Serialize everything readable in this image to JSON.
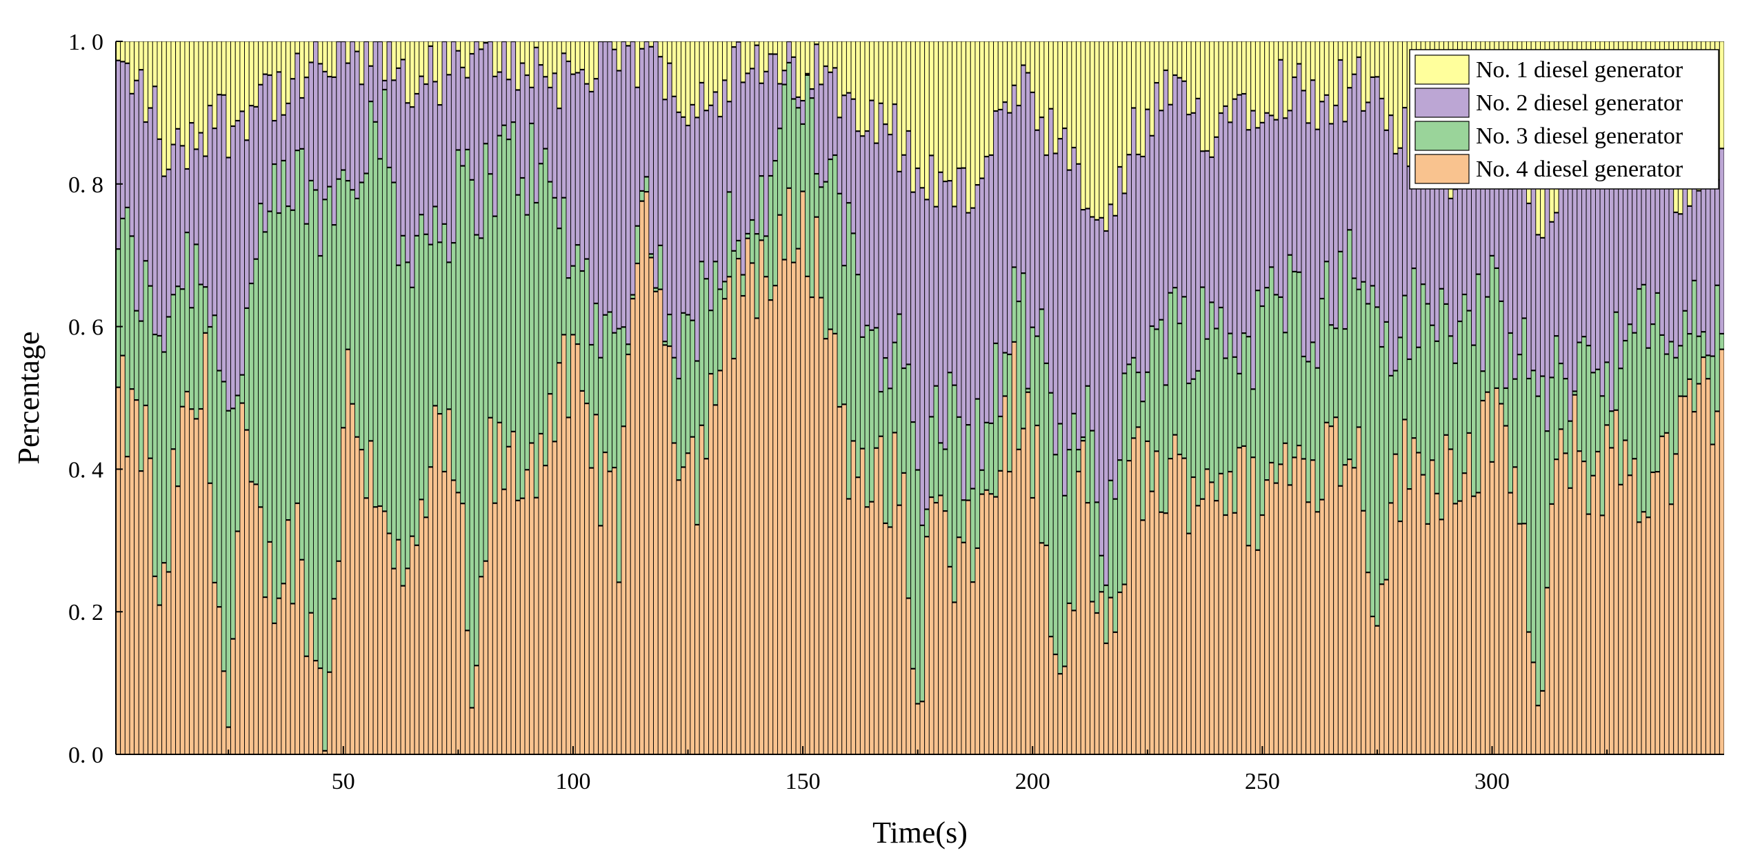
{
  "chart_data": {
    "type": "bar",
    "stacked": true,
    "normalized": true,
    "xlabel": "Time(s)",
    "ylabel": "Percentage",
    "xlim": [
      0.5,
      350.5
    ],
    "ylim": [
      0,
      1.0
    ],
    "x_ticks": [
      50,
      100,
      150,
      200,
      250,
      300
    ],
    "y_ticks": [
      "0.0",
      "0.2",
      "0.4",
      "0.6",
      "0.8",
      "1.0"
    ],
    "grid": false,
    "legend_position": "top-right",
    "n_bars": 350,
    "series": [
      {
        "name": "No. 4 diesel generator",
        "color": "#F9C38F"
      },
      {
        "name": "No. 3 diesel generator",
        "color": "#9AD49A"
      },
      {
        "name": "No. 2 diesel generator",
        "color": "#BCA6D4"
      },
      {
        "name": "No. 1 diesel generator",
        "color": "#FFFF9C"
      }
    ],
    "cumulative_profile": {
      "no4_top": [
        [
          1,
          0.49
        ],
        [
          8,
          0.42
        ],
        [
          10,
          0.15
        ],
        [
          14,
          0.42
        ],
        [
          20,
          0.52
        ],
        [
          25,
          0.02
        ],
        [
          28,
          0.42
        ],
        [
          34,
          0.24
        ],
        [
          40,
          0.3
        ],
        [
          46,
          0.05
        ],
        [
          51,
          0.52
        ],
        [
          55,
          0.42
        ],
        [
          60,
          0.35
        ],
        [
          63,
          0.2
        ],
        [
          70,
          0.42
        ],
        [
          75,
          0.4
        ],
        [
          78,
          0.02
        ],
        [
          82,
          0.4
        ],
        [
          90,
          0.4
        ],
        [
          96,
          0.5
        ],
        [
          100,
          0.52
        ],
        [
          106,
          0.4
        ],
        [
          110,
          0.3
        ],
        [
          113,
          0.7
        ],
        [
          118,
          0.72
        ],
        [
          123,
          0.45
        ],
        [
          127,
          0.4
        ],
        [
          132,
          0.55
        ],
        [
          138,
          0.7
        ],
        [
          144,
          0.66
        ],
        [
          148,
          0.75
        ],
        [
          152,
          0.72
        ],
        [
          156,
          0.6
        ],
        [
          162,
          0.35
        ],
        [
          168,
          0.4
        ],
        [
          172,
          0.35
        ],
        [
          175,
          0.05
        ],
        [
          178,
          0.35
        ],
        [
          184,
          0.24
        ],
        [
          190,
          0.35
        ],
        [
          196,
          0.5
        ],
        [
          201,
          0.4
        ],
        [
          206,
          0.05
        ],
        [
          211,
          0.4
        ],
        [
          216,
          0.1
        ],
        [
          222,
          0.4
        ],
        [
          230,
          0.38
        ],
        [
          240,
          0.4
        ],
        [
          248,
          0.35
        ],
        [
          255,
          0.4
        ],
        [
          262,
          0.42
        ],
        [
          270,
          0.45
        ],
        [
          275,
          0.22
        ],
        [
          280,
          0.4
        ],
        [
          288,
          0.4
        ],
        [
          294,
          0.42
        ],
        [
          300,
          0.45
        ],
        [
          306,
          0.38
        ],
        [
          310,
          0.02
        ],
        [
          315,
          0.45
        ],
        [
          322,
          0.4
        ],
        [
          328,
          0.42
        ],
        [
          334,
          0.38
        ],
        [
          340,
          0.42
        ],
        [
          346,
          0.5
        ],
        [
          350,
          0.5
        ]
      ],
      "no3_top": [
        [
          1,
          0.74
        ],
        [
          8,
          0.62
        ],
        [
          10,
          0.6
        ],
        [
          16,
          0.7
        ],
        [
          22,
          0.65
        ],
        [
          25,
          0.45
        ],
        [
          28,
          0.58
        ],
        [
          34,
          0.75
        ],
        [
          40,
          0.8
        ],
        [
          46,
          0.75
        ],
        [
          52,
          0.85
        ],
        [
          58,
          0.9
        ],
        [
          62,
          0.72
        ],
        [
          68,
          0.74
        ],
        [
          74,
          0.77
        ],
        [
          80,
          0.8
        ],
        [
          88,
          0.84
        ],
        [
          94,
          0.8
        ],
        [
          100,
          0.7
        ],
        [
          106,
          0.62
        ],
        [
          110,
          0.55
        ],
        [
          115,
          0.8
        ],
        [
          120,
          0.62
        ],
        [
          125,
          0.55
        ],
        [
          130,
          0.7
        ],
        [
          135,
          0.75
        ],
        [
          140,
          0.72
        ],
        [
          145,
          0.88
        ],
        [
          150,
          0.92
        ],
        [
          155,
          0.82
        ],
        [
          160,
          0.7
        ],
        [
          165,
          0.6
        ],
        [
          172,
          0.55
        ],
        [
          176,
          0.35
        ],
        [
          180,
          0.5
        ],
        [
          186,
          0.42
        ],
        [
          190,
          0.45
        ],
        [
          196,
          0.62
        ],
        [
          202,
          0.55
        ],
        [
          206,
          0.4
        ],
        [
          212,
          0.5
        ],
        [
          216,
          0.3
        ],
        [
          222,
          0.55
        ],
        [
          230,
          0.6
        ],
        [
          240,
          0.6
        ],
        [
          248,
          0.58
        ],
        [
          255,
          0.65
        ],
        [
          262,
          0.62
        ],
        [
          270,
          0.68
        ],
        [
          278,
          0.58
        ],
        [
          285,
          0.62
        ],
        [
          292,
          0.6
        ],
        [
          300,
          0.62
        ],
        [
          306,
          0.55
        ],
        [
          312,
          0.5
        ],
        [
          318,
          0.55
        ],
        [
          324,
          0.55
        ],
        [
          330,
          0.58
        ],
        [
          338,
          0.6
        ],
        [
          345,
          0.6
        ],
        [
          350,
          0.6
        ]
      ],
      "no2_top": [
        [
          1,
          0.96
        ],
        [
          8,
          0.92
        ],
        [
          12,
          0.82
        ],
        [
          16,
          0.86
        ],
        [
          22,
          0.9
        ],
        [
          26,
          0.88
        ],
        [
          32,
          0.94
        ],
        [
          38,
          0.92
        ],
        [
          44,
          0.96
        ],
        [
          50,
          0.97
        ],
        [
          56,
          0.98
        ],
        [
          60,
          0.97
        ],
        [
          66,
          0.94
        ],
        [
          72,
          0.96
        ],
        [
          78,
          0.97
        ],
        [
          84,
          0.98
        ],
        [
          90,
          0.97
        ],
        [
          96,
          0.95
        ],
        [
          102,
          0.96
        ],
        [
          108,
          0.97
        ],
        [
          114,
          0.98
        ],
        [
          120,
          0.96
        ],
        [
          126,
          0.92
        ],
        [
          132,
          0.94
        ],
        [
          138,
          0.96
        ],
        [
          144,
          0.95
        ],
        [
          150,
          0.96
        ],
        [
          156,
          0.94
        ],
        [
          162,
          0.92
        ],
        [
          168,
          0.9
        ],
        [
          174,
          0.82
        ],
        [
          180,
          0.8
        ],
        [
          186,
          0.78
        ],
        [
          192,
          0.88
        ],
        [
          198,
          0.92
        ],
        [
          204,
          0.86
        ],
        [
          210,
          0.8
        ],
        [
          216,
          0.72
        ],
        [
          222,
          0.86
        ],
        [
          230,
          0.92
        ],
        [
          238,
          0.88
        ],
        [
          246,
          0.92
        ],
        [
          254,
          0.94
        ],
        [
          262,
          0.92
        ],
        [
          270,
          0.94
        ],
        [
          278,
          0.88
        ],
        [
          286,
          0.84
        ],
        [
          294,
          0.82
        ],
        [
          302,
          0.86
        ],
        [
          310,
          0.76
        ],
        [
          318,
          0.84
        ],
        [
          326,
          0.86
        ],
        [
          334,
          0.84
        ],
        [
          342,
          0.8
        ],
        [
          350,
          0.86
        ]
      ]
    }
  }
}
